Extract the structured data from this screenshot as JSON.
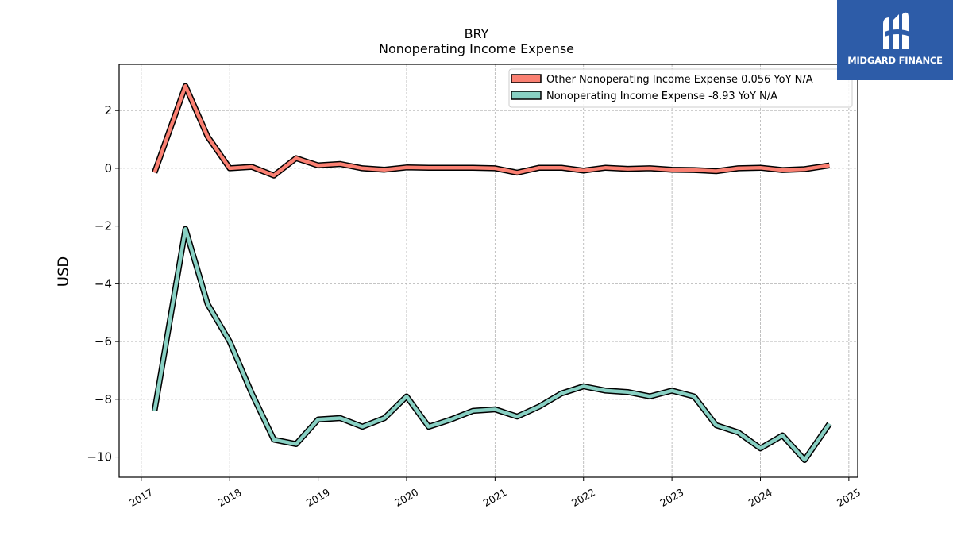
{
  "header": {
    "ticker": "BRY",
    "subtitle": "Nonoperating Income Expense"
  },
  "brand": {
    "name": "MIDGARD FINANCE",
    "color": "#2d5ca8"
  },
  "chart_data": {
    "type": "line",
    "title": "BRY",
    "subtitle": "Nonoperating Income Expense",
    "ylabel": "USD",
    "xlabel": "",
    "ylim": [
      -10.7,
      3.6
    ],
    "xlim": [
      2016.75,
      2025.1
    ],
    "grid": true,
    "legend_position": "top-right",
    "x_ticks": [
      2017,
      2018,
      2019,
      2020,
      2021,
      2022,
      2023,
      2024,
      2025
    ],
    "y_ticks": [
      2,
      0,
      -2,
      -4,
      -6,
      -8,
      -10
    ],
    "y_tick_labels": [
      "2",
      "0",
      "−2",
      "−4",
      "−6",
      "−8",
      "−10"
    ],
    "x": [
      2017.15,
      2017.5,
      2017.75,
      2018.0,
      2018.25,
      2018.5,
      2018.75,
      2019.0,
      2019.25,
      2019.5,
      2019.75,
      2020.0,
      2020.25,
      2020.5,
      2020.75,
      2021.0,
      2021.25,
      2021.5,
      2021.75,
      2022.0,
      2022.25,
      2022.5,
      2022.75,
      2023.0,
      2023.25,
      2023.5,
      2023.75,
      2024.0,
      2024.25,
      2024.5,
      2024.78
    ],
    "series": [
      {
        "name": "Other Nonoperating Income Expense",
        "legend_label": "Other Nonoperating Income Expense  0.056 YoY N/A",
        "color": "#fa8072",
        "values": [
          -0.15,
          2.85,
          1.1,
          0.0,
          0.05,
          -0.25,
          0.35,
          0.1,
          0.15,
          0.0,
          -0.05,
          0.03,
          0.02,
          0.02,
          0.02,
          0.0,
          -0.15,
          0.02,
          0.02,
          -0.08,
          0.02,
          -0.02,
          0.0,
          -0.05,
          -0.06,
          -0.1,
          0.0,
          0.02,
          -0.06,
          -0.03,
          0.1
        ]
      },
      {
        "name": "Nonoperating Income Expense",
        "legend_label": "Nonoperating Income Expense  -8.93 YoY N/A",
        "color": "#88d0c3",
        "values": [
          -8.4,
          -2.1,
          -4.7,
          -6.0,
          -7.8,
          -9.4,
          -9.55,
          -8.7,
          -8.65,
          -8.95,
          -8.65,
          -7.9,
          -8.95,
          -8.7,
          -8.4,
          -8.35,
          -8.6,
          -8.25,
          -7.8,
          -7.55,
          -7.7,
          -7.75,
          -7.9,
          -7.7,
          -7.9,
          -8.9,
          -9.15,
          -9.7,
          -9.25,
          -10.1,
          -8.85
        ]
      }
    ]
  }
}
